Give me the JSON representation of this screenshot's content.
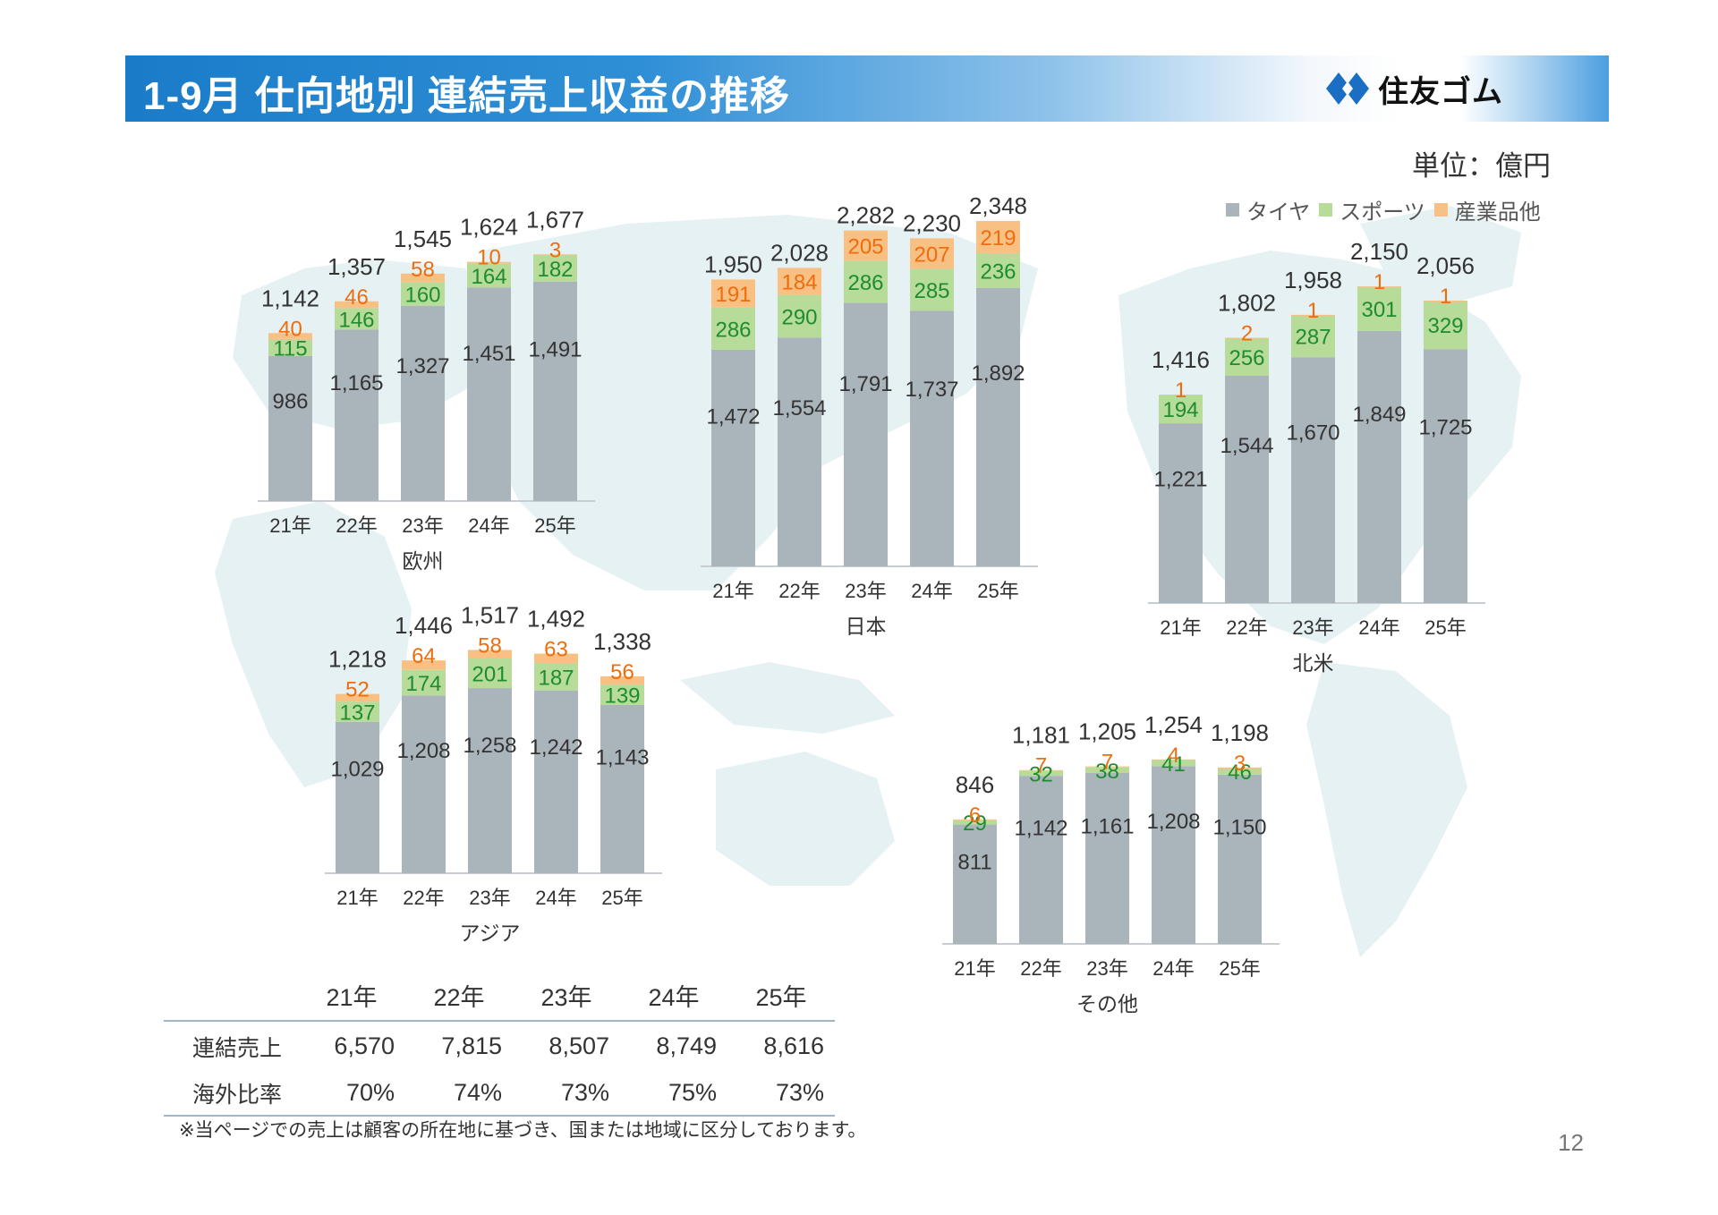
{
  "header": {
    "title": "1-9月 仕向地別 連結売上収益の推移",
    "logo_text": "住友ゴム"
  },
  "unit_label": "単位：億円",
  "legend": [
    {
      "label": "タイヤ",
      "color": "#aab4bb"
    },
    {
      "label": "スポーツ",
      "color": "#b7dc9a"
    },
    {
      "label": "産業品他",
      "color": "#f8c083"
    }
  ],
  "colors": {
    "tire": "#aab4bb",
    "sports": "#b7dc9a",
    "industrial": "#f8c083",
    "sports_label": "#1e8c2e",
    "industrial_label": "#ee6d0e",
    "header": "#1a7cc9"
  },
  "chart_data": [
    {
      "type": "bar",
      "stacked": true,
      "title": "欧州",
      "categories": [
        "21年",
        "22年",
        "23年",
        "24年",
        "25年"
      ],
      "series": [
        {
          "name": "タイヤ",
          "values": [
            986,
            1165,
            1327,
            1451,
            1491
          ]
        },
        {
          "name": "スポーツ",
          "values": [
            115,
            146,
            160,
            164,
            182
          ]
        },
        {
          "name": "産業品他",
          "values": [
            40,
            46,
            58,
            10,
            3
          ]
        }
      ],
      "totals": [
        "1,142",
        "1,357",
        "1,545",
        "1,624",
        "1,677"
      ]
    },
    {
      "type": "bar",
      "stacked": true,
      "title": "日本",
      "categories": [
        "21年",
        "22年",
        "23年",
        "24年",
        "25年"
      ],
      "series": [
        {
          "name": "タイヤ",
          "values": [
            1472,
            1554,
            1791,
            1737,
            1892
          ]
        },
        {
          "name": "スポーツ",
          "values": [
            286,
            290,
            286,
            285,
            236
          ]
        },
        {
          "name": "産業品他",
          "values": [
            191,
            184,
            205,
            207,
            219
          ]
        }
      ],
      "totals": [
        "1,950",
        "2,028",
        "2,282",
        "2,230",
        "2,348"
      ]
    },
    {
      "type": "bar",
      "stacked": true,
      "title": "北米",
      "categories": [
        "21年",
        "22年",
        "23年",
        "24年",
        "25年"
      ],
      "series": [
        {
          "name": "タイヤ",
          "values": [
            1221,
            1544,
            1670,
            1849,
            1725
          ]
        },
        {
          "name": "スポーツ",
          "values": [
            194,
            256,
            287,
            301,
            329
          ]
        },
        {
          "name": "産業品他",
          "values": [
            1,
            2,
            1,
            1,
            1
          ]
        }
      ],
      "totals": [
        "1,416",
        "1,802",
        "1,958",
        "2,150",
        "2,056"
      ]
    },
    {
      "type": "bar",
      "stacked": true,
      "title": "アジア",
      "categories": [
        "21年",
        "22年",
        "23年",
        "24年",
        "25年"
      ],
      "series": [
        {
          "name": "タイヤ",
          "values": [
            1029,
            1208,
            1258,
            1242,
            1143
          ]
        },
        {
          "name": "スポーツ",
          "values": [
            137,
            174,
            201,
            187,
            139
          ]
        },
        {
          "name": "産業品他",
          "values": [
            52,
            64,
            58,
            63,
            56
          ]
        }
      ],
      "totals": [
        "1,218",
        "1,446",
        "1,517",
        "1,492",
        "1,338"
      ]
    },
    {
      "type": "bar",
      "stacked": true,
      "title": "その他",
      "categories": [
        "21年",
        "22年",
        "23年",
        "24年",
        "25年"
      ],
      "series": [
        {
          "name": "タイヤ",
          "values": [
            811,
            1142,
            1161,
            1208,
            1150
          ]
        },
        {
          "name": "スポーツ",
          "values": [
            29,
            32,
            38,
            41,
            46
          ]
        },
        {
          "name": "産業品他",
          "values": [
            6,
            7,
            7,
            4,
            3
          ]
        }
      ],
      "totals": [
        "846",
        "1,181",
        "1,205",
        "1,254",
        "1,198"
      ]
    }
  ],
  "summary": {
    "years": [
      "21年",
      "22年",
      "23年",
      "24年",
      "25年"
    ],
    "rows": [
      {
        "label": "連結売上",
        "values": [
          "6,570",
          "7,815",
          "8,507",
          "8,749",
          "8,616"
        ]
      },
      {
        "label": "海外比率",
        "values": [
          "70%",
          "74%",
          "73%",
          "75%",
          "73%"
        ]
      }
    ]
  },
  "footnote": "※当ページでの売上は顧客の所在地に基づき、国または地域に区分しております。",
  "page_number": "12"
}
